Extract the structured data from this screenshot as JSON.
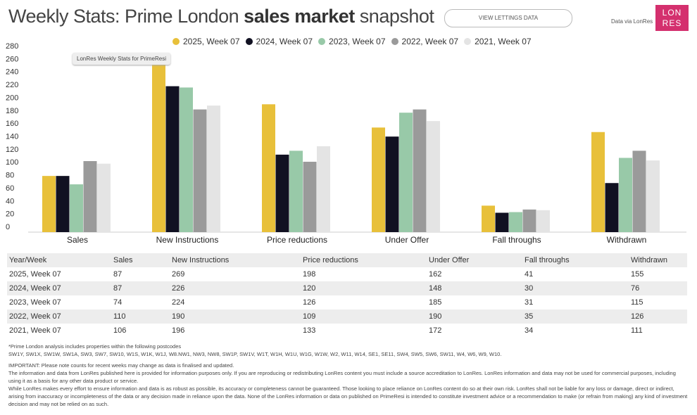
{
  "header": {
    "title_pre": "Weekly Stats: Prime London ",
    "title_bold": "sales market",
    "title_post": " snapshot",
    "button": "VIEW LETTINGS DATA",
    "via": "Data via LonRes",
    "logo": "LON RES"
  },
  "tooltip": "LonRes Weekly Stats for PrimeResi",
  "chart_data": {
    "type": "bar",
    "categories": [
      "Sales",
      "New Instructions",
      "Price reductions",
      "Under Offer",
      "Fall throughs",
      "Withdrawn"
    ],
    "ylim": [
      0,
      280
    ],
    "yticks": [
      0,
      20,
      40,
      60,
      80,
      100,
      120,
      140,
      160,
      180,
      200,
      220,
      240,
      260,
      280
    ],
    "legend": "top",
    "grid": false,
    "series": [
      {
        "name": "2025, Week 07",
        "color": "#e8c03a",
        "values": [
          87,
          269,
          198,
          162,
          41,
          155
        ]
      },
      {
        "name": "2024, Week 07",
        "color": "#111122",
        "values": [
          87,
          226,
          120,
          148,
          30,
          76
        ]
      },
      {
        "name": "2023, Week 07",
        "color": "#98c9a8",
        "values": [
          74,
          224,
          126,
          185,
          31,
          115
        ]
      },
      {
        "name": "2022, Week 07",
        "color": "#9a9a9a",
        "values": [
          110,
          190,
          109,
          190,
          35,
          126
        ]
      },
      {
        "name": "2021, Week 07",
        "color": "#e4e4e4",
        "values": [
          106,
          196,
          133,
          172,
          34,
          111
        ]
      }
    ]
  },
  "table": {
    "headers": [
      "Year/Week",
      "Sales",
      "New Instructions",
      "Price reductions",
      "Under Offer",
      "Fall throughs",
      "Withdrawn"
    ],
    "rows": [
      [
        "2025, Week 07",
        "87",
        "269",
        "198",
        "162",
        "41",
        "155"
      ],
      [
        "2024, Week 07",
        "87",
        "226",
        "120",
        "148",
        "30",
        "76"
      ],
      [
        "2023, Week 07",
        "74",
        "224",
        "126",
        "185",
        "31",
        "115"
      ],
      [
        "2022, Week 07",
        "110",
        "190",
        "109",
        "190",
        "35",
        "126"
      ],
      [
        "2021, Week 07",
        "106",
        "196",
        "133",
        "172",
        "34",
        "111"
      ]
    ]
  },
  "notes": [
    "*Prime London analysis includes properties within the following postcodes",
    "SW1Y, SW1X, SW1W, SW1A, SW3, SW7, SW10, W1S, W1K, W1J, W8.NW1, NW3, NW8, SW1P, SW1V, W1T, W1H, W1U, W1G, W1W, W2, W11, W14, SE1, SE11, SW4, SW5, SW6, SW11, W4, W6, W9, W10.",
    "IMPORTANT: Please note counts for recent weeks may change as data is finalised and updated.",
    "The information and data from LonRes published here is provided for information purposes only. If you are reproducing or redistributing LonRes content you must include a source accreditation to LonRes. LonRes information and data may not be used for commercial purposes, including using it as a basis for any other data product or service.",
    "While LonRes makes every effort to ensure information and data is as robust as possible, its accuracy or completeness cannot be guaranteed. Those looking to place reliance on LonRes content do so at their own risk. LonRes shall not be liable for any loss or damage, direct or indirect, arising from inaccuracy or incompleteness of the data or any decision made in reliance upon the data. None of the LonRes information or data on published on PrimeResi is intended to constitute investment advice or a recommendation to make (or refrain from making) any kind of investment decision and may not be relied on as such."
  ]
}
